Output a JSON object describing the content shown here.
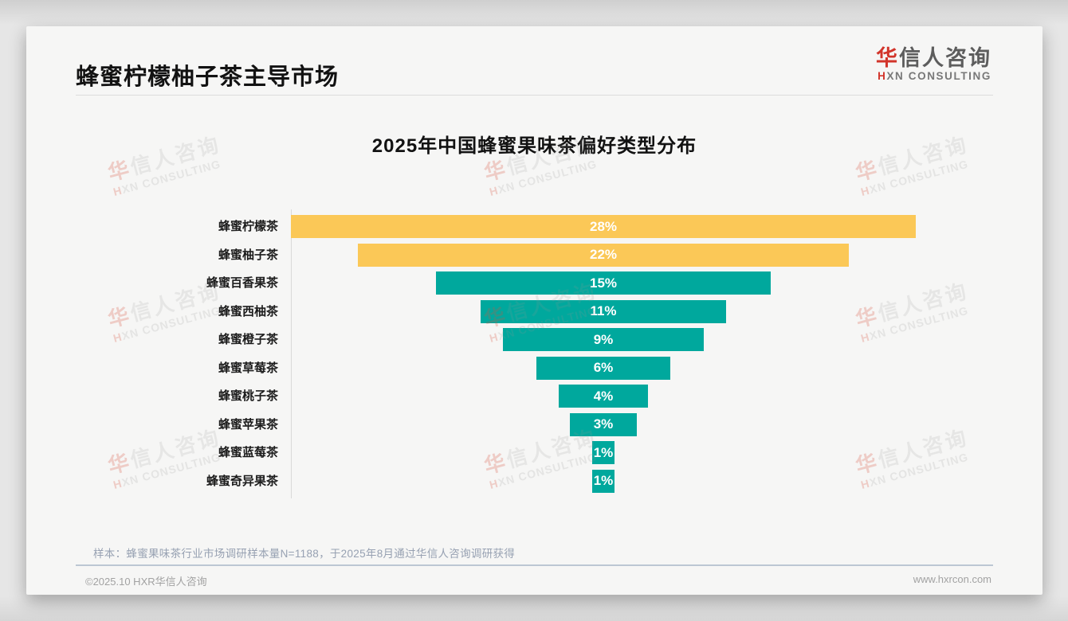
{
  "page": {
    "title": "蜂蜜柠檬柚子茶主导市场",
    "logo": {
      "cn_accent": "华",
      "cn_rest": "信人咨询",
      "en_accent": "H",
      "en_rest": "XN CONSULTING"
    },
    "note": "样本：蜂蜜果味茶行业市场调研样本量N=1188，于2025年8月通过华信人咨询调研获得",
    "footer": {
      "left": "©2025.10 HXR华信人咨询",
      "right": "www.hxrcon.com"
    },
    "watermark": {
      "cn_accent": "华",
      "cn_rest": "信人咨询",
      "en_accent": "H",
      "en_rest": "XN CONSULTING"
    }
  },
  "chart_data": {
    "type": "bar",
    "subtype": "centered-funnel",
    "orientation": "horizontal",
    "title": "2025年中国蜂蜜果味茶偏好类型分布",
    "categories": [
      "蜂蜜柠檬茶",
      "蜂蜜柚子茶",
      "蜂蜜百香果茶",
      "蜂蜜西柚茶",
      "蜂蜜橙子茶",
      "蜂蜜草莓茶",
      "蜂蜜桃子茶",
      "蜂蜜苹果茶",
      "蜂蜜蓝莓茶",
      "蜂蜜奇异果茶"
    ],
    "values": [
      28,
      22,
      15,
      11,
      9,
      6,
      4,
      3,
      1,
      1
    ],
    "value_labels": [
      "28%",
      "22%",
      "15%",
      "11%",
      "9%",
      "6%",
      "4%",
      "3%",
      "1%",
      "1%"
    ],
    "unit": "%",
    "xlim": [
      0,
      28
    ],
    "grid": false,
    "legend": false,
    "value_label_position": "inside-center",
    "value_label_color": "#ffffff",
    "highlight_count": 2,
    "colors": {
      "highlight": "#fbc857",
      "default": "#00a89d"
    }
  },
  "colors": {
    "accent_red": "#d2342a",
    "bar_yellow": "#fbc857",
    "bar_teal": "#00a89d",
    "note_text": "#97a1b2",
    "footer_text": "#a2a2a2",
    "card_bg": "#f6f6f5"
  }
}
